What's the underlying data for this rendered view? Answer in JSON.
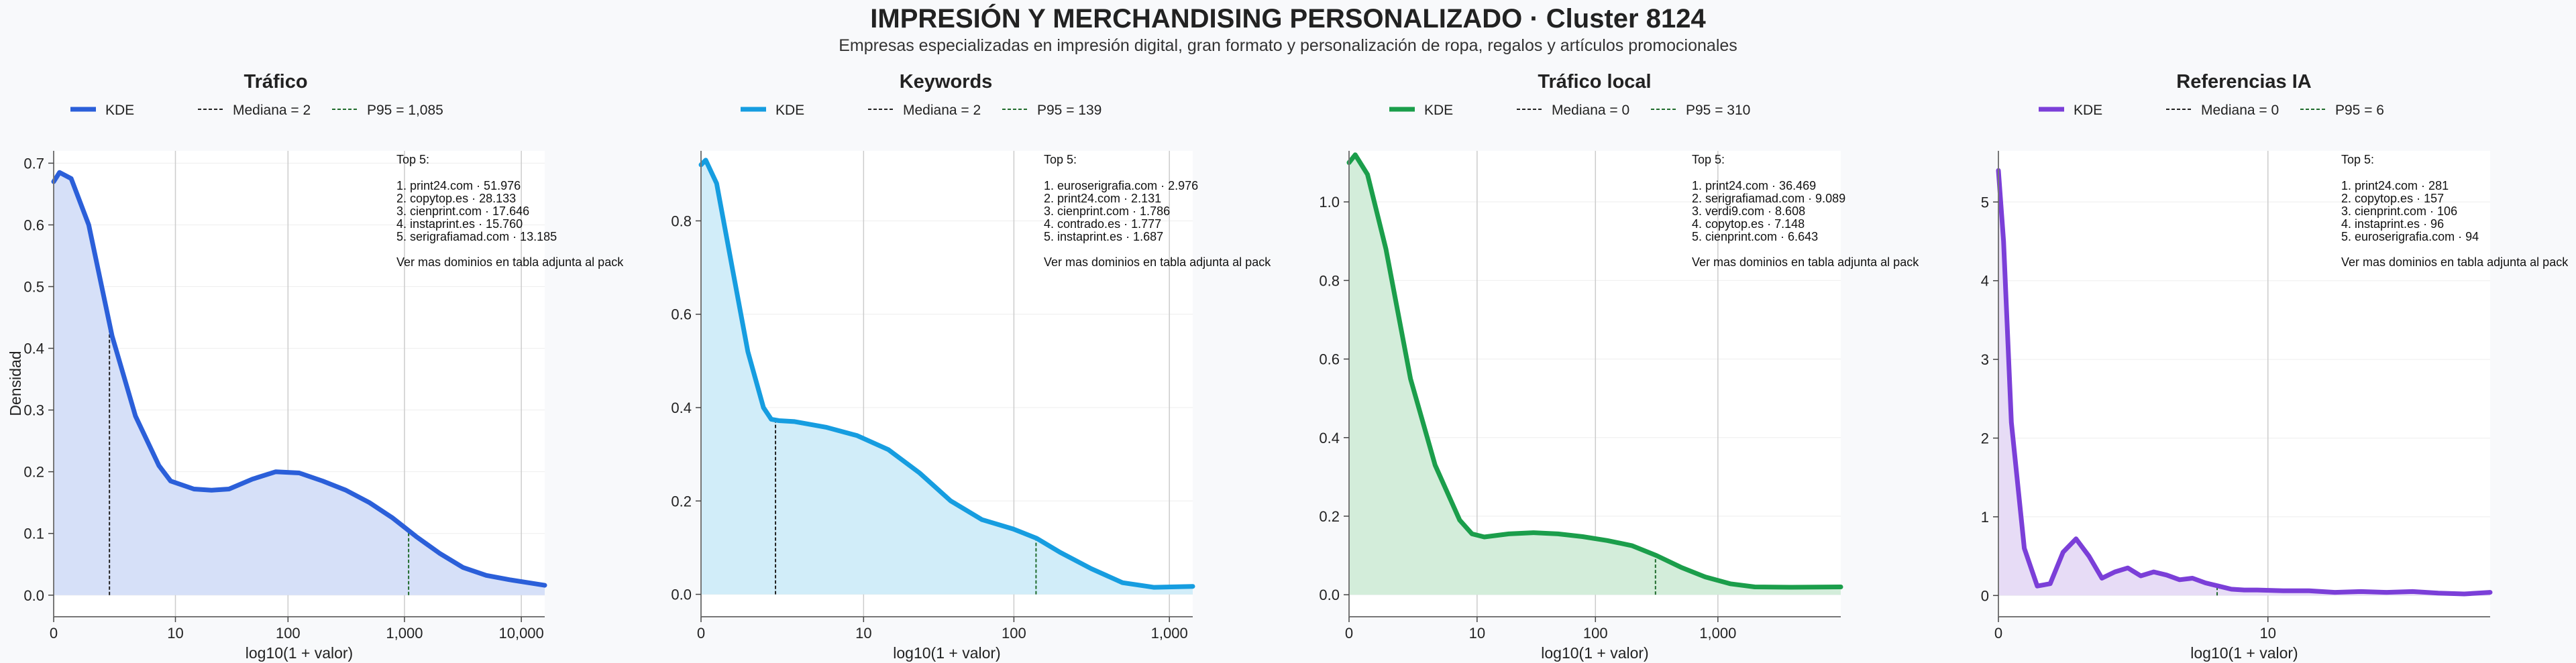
{
  "title": "IMPRESIÓN Y MERCHANDISING PERSONALIZADO · Cluster 8124",
  "subtitle": "Empresas especializadas en impresión digital, gran formato y personalización de ropa, regalos y artículos promocionales",
  "ylabel": "Densidad",
  "chart_data": [
    {
      "type": "area",
      "title": "Tráfico",
      "color": "#2b5fd9",
      "fill": "#d6e0f8",
      "xlabel": "log10(1 + valor)",
      "xscale": "log10(1+x)",
      "xlim": [
        0,
        4.2
      ],
      "ylim": [
        -0.035,
        0.72
      ],
      "xticks": [
        "0",
        "10",
        "100",
        "1,000",
        "10,000"
      ],
      "yticks": [
        "0.0",
        "0.1",
        "0.2",
        "0.3",
        "0.4",
        "0.5",
        "0.6",
        "0.7"
      ],
      "legend": [
        "KDE",
        "Mediana = 2",
        "P95 = 1,085"
      ],
      "median": 2,
      "p95": 1085,
      "x": [
        0,
        0.05,
        0.15,
        0.3,
        0.5,
        0.7,
        0.9,
        1.0,
        1.2,
        1.35,
        1.5,
        1.7,
        1.9,
        2.1,
        2.3,
        2.5,
        2.7,
        2.9,
        3.0,
        3.1,
        3.3,
        3.5,
        3.7,
        3.9,
        4.1,
        4.2
      ],
      "y": [
        0.67,
        0.685,
        0.675,
        0.6,
        0.42,
        0.29,
        0.21,
        0.185,
        0.172,
        0.17,
        0.172,
        0.188,
        0.2,
        0.198,
        0.185,
        0.17,
        0.15,
        0.125,
        0.11,
        0.095,
        0.068,
        0.045,
        0.032,
        0.025,
        0.019,
        0.016
      ],
      "top5_header": "Top 5:",
      "top5": [
        "1. print24.com · 51.976",
        "2. copytop.es · 28.133",
        "3. cienprint.com · 17.646",
        "4. instaprint.es · 15.760",
        "5. serigrafiamad.com · 13.185"
      ],
      "note": "Ver mas dominios en tabla adjunta al pack"
    },
    {
      "type": "area",
      "title": "Keywords",
      "color": "#169de0",
      "fill": "#d1edf9",
      "xlabel": "log10(1 + valor)",
      "xscale": "log10(1+x)",
      "xlim": [
        0,
        3.15
      ],
      "ylim": [
        -0.048,
        0.95
      ],
      "xticks": [
        "0",
        "10",
        "100",
        "1,000"
      ],
      "yticks": [
        "0.0",
        "0.2",
        "0.4",
        "0.6",
        "0.8"
      ],
      "legend": [
        "KDE",
        "Mediana = 2",
        "P95 = 139"
      ],
      "median": 2,
      "p95": 139,
      "x": [
        0,
        0.03,
        0.1,
        0.2,
        0.3,
        0.4,
        0.45,
        0.5,
        0.6,
        0.8,
        1.0,
        1.2,
        1.4,
        1.6,
        1.8,
        2.0,
        2.15,
        2.3,
        2.5,
        2.7,
        2.9,
        3.15
      ],
      "y": [
        0.92,
        0.93,
        0.88,
        0.7,
        0.52,
        0.4,
        0.375,
        0.372,
        0.37,
        0.358,
        0.34,
        0.31,
        0.26,
        0.2,
        0.16,
        0.14,
        0.12,
        0.09,
        0.055,
        0.025,
        0.015,
        0.017
      ],
      "top5_header": "Top 5:",
      "top5": [
        "1. euroserigrafia.com · 2.976",
        "2. print24.com · 2.131",
        "3. cienprint.com · 1.786",
        "4. contrado.es · 1.777",
        "5. instaprint.es · 1.687"
      ],
      "note": "Ver mas dominios en tabla adjunta al pack"
    },
    {
      "type": "area",
      "title": "Tráfico local",
      "color": "#1b9e4b",
      "fill": "#d3edda",
      "xlabel": "log10(1 + valor)",
      "xscale": "log10(1+x)",
      "xlim": [
        0,
        4.0
      ],
      "ylim": [
        -0.056,
        1.13
      ],
      "xticks": [
        "0",
        "10",
        "100",
        "1,000"
      ],
      "yticks": [
        "0.0",
        "0.2",
        "0.4",
        "0.6",
        "0.8",
        "1.0"
      ],
      "legend": [
        "KDE",
        "Mediana = 0",
        "P95 = 310"
      ],
      "median": 0,
      "p95": 310,
      "x": [
        0,
        0.05,
        0.15,
        0.3,
        0.5,
        0.7,
        0.9,
        1.0,
        1.1,
        1.3,
        1.5,
        1.7,
        1.9,
        2.1,
        2.3,
        2.5,
        2.7,
        2.9,
        3.1,
        3.3,
        3.6,
        4.0
      ],
      "y": [
        1.1,
        1.12,
        1.07,
        0.88,
        0.55,
        0.33,
        0.19,
        0.155,
        0.147,
        0.155,
        0.158,
        0.155,
        0.148,
        0.138,
        0.125,
        0.1,
        0.07,
        0.045,
        0.028,
        0.02,
        0.019,
        0.02
      ],
      "top5_header": "Top 5:",
      "top5": [
        "1. print24.com · 36.469",
        "2. serigrafiamad.com · 9.089",
        "3. verdi9.com · 8.608",
        "4. copytop.es · 7.148",
        "5. cienprint.com · 6.643"
      ],
      "note": "Ver mas dominios en tabla adjunta al pack"
    },
    {
      "type": "area",
      "title": "Referencias IA",
      "color": "#7b3fd8",
      "fill": "#e7dcf6",
      "xlabel": "log10(1 + valor)",
      "xscale": "log10(1+x)",
      "xlim": [
        0,
        1.9
      ],
      "ylim": [
        -0.27,
        5.65
      ],
      "xticks": [
        "0",
        "10"
      ],
      "yticks": [
        "0",
        "1",
        "2",
        "3",
        "4",
        "5"
      ],
      "legend": [
        "KDE",
        "Mediana = 0",
        "P95 = 6"
      ],
      "median": 0,
      "p95": 6,
      "x": [
        0,
        0.02,
        0.05,
        0.1,
        0.15,
        0.2,
        0.25,
        0.3,
        0.35,
        0.4,
        0.45,
        0.5,
        0.55,
        0.6,
        0.65,
        0.7,
        0.75,
        0.8,
        0.85,
        0.9,
        0.95,
        1.0,
        1.1,
        1.2,
        1.3,
        1.4,
        1.5,
        1.6,
        1.7,
        1.8,
        1.9
      ],
      "y": [
        5.4,
        4.5,
        2.2,
        0.6,
        0.12,
        0.15,
        0.55,
        0.72,
        0.5,
        0.22,
        0.3,
        0.35,
        0.25,
        0.3,
        0.26,
        0.2,
        0.22,
        0.16,
        0.12,
        0.08,
        0.07,
        0.07,
        0.06,
        0.06,
        0.04,
        0.05,
        0.04,
        0.05,
        0.03,
        0.02,
        0.04
      ],
      "top5_header": "Top 5:",
      "top5": [
        "1. print24.com · 281",
        "2. copytop.es · 157",
        "3. cienprint.com · 106",
        "4. instaprint.es · 96",
        "5. euroserigrafia.com · 94"
      ],
      "note": "Ver mas dominios en tabla adjunta al pack"
    }
  ]
}
